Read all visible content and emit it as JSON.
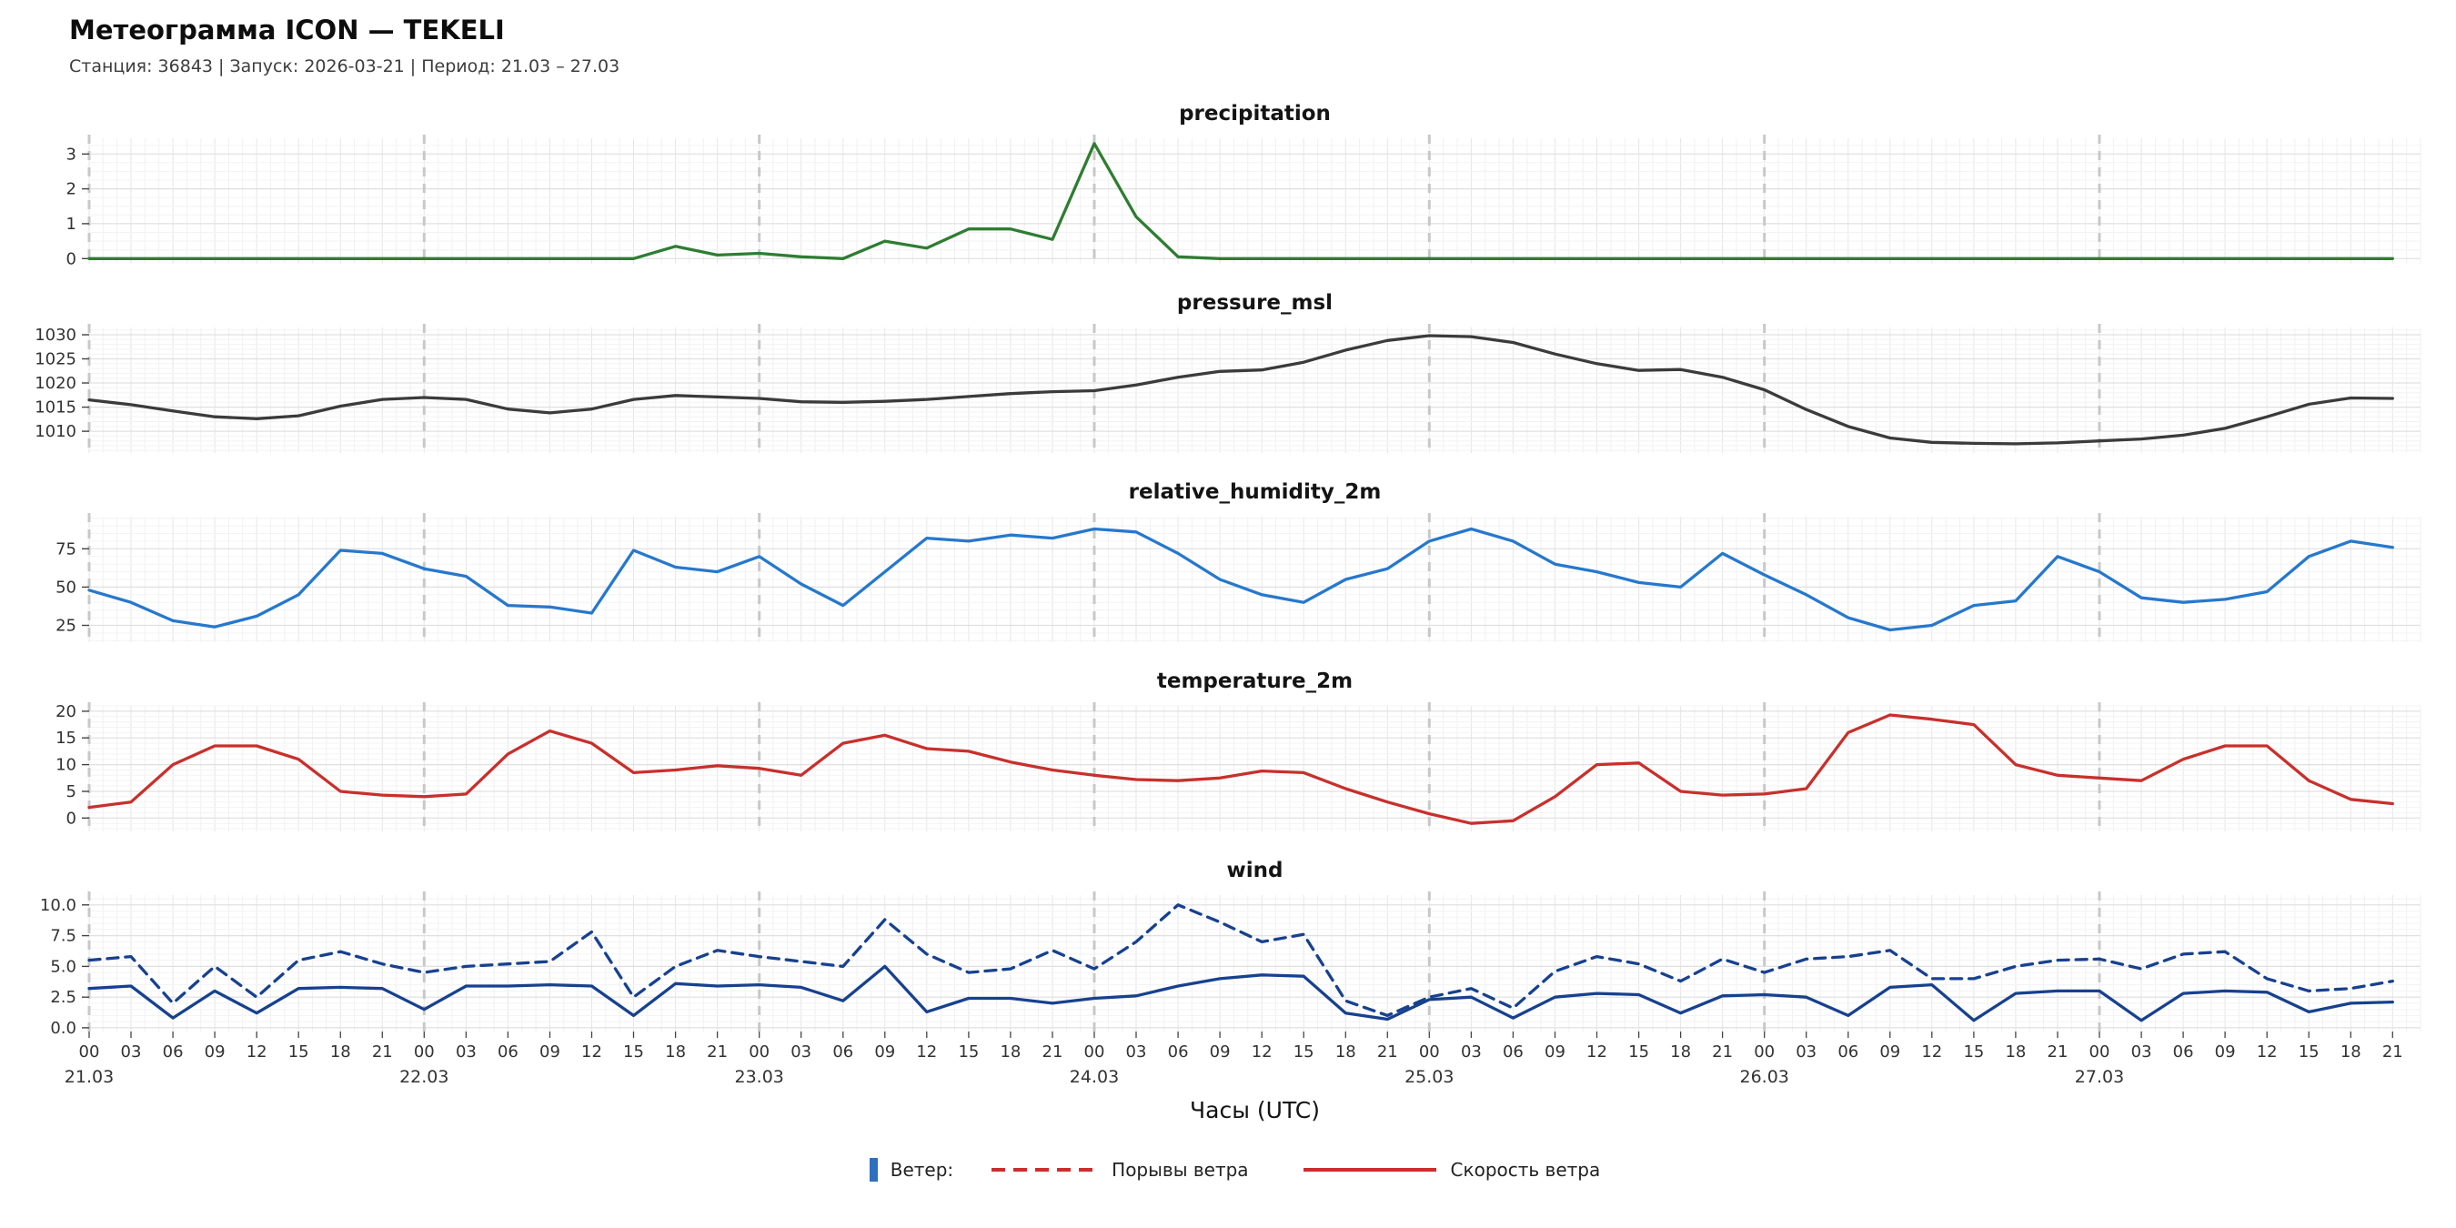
{
  "header": {
    "title": "Метеограмма ICON — TEKELI",
    "subtitle": "Станция: 36843  | Запуск: 2026-03-21  | Период: 21.03 – 27.03"
  },
  "x_axis": {
    "label": "Часы (UTC)",
    "hours_domain": [
      0,
      167
    ],
    "hour_tick_labels": [
      "00",
      "03",
      "06",
      "09",
      "12",
      "15",
      "18",
      "21"
    ],
    "day_labels": [
      "21.03",
      "22.03",
      "23.03",
      "24.03",
      "25.03",
      "26.03",
      "27.03"
    ],
    "sample_hours": [
      0,
      3,
      6,
      9,
      12,
      15,
      18,
      21,
      24,
      27,
      30,
      33,
      36,
      39,
      42,
      45,
      48,
      51,
      54,
      57,
      60,
      63,
      66,
      69,
      72,
      75,
      78,
      81,
      84,
      87,
      90,
      93,
      96,
      99,
      102,
      105,
      108,
      111,
      114,
      117,
      120,
      123,
      126,
      129,
      132,
      135,
      138,
      141,
      144,
      147,
      150,
      153,
      156,
      159,
      162,
      165
    ]
  },
  "chart_data": [
    {
      "type": "line",
      "title": "precipitation",
      "color": "#2e7d32",
      "ylim": [
        -0.15,
        3.45
      ],
      "ytick_values": [
        0,
        1,
        2,
        3
      ],
      "ytick_labels": [
        "0",
        "1",
        "2",
        "3"
      ],
      "y_minor_step": 0.25,
      "values": [
        0,
        0,
        0,
        0,
        0,
        0,
        0,
        0,
        0,
        0,
        0,
        0,
        0,
        0,
        0.35,
        0.1,
        0.15,
        0.05,
        0,
        0.5,
        0.3,
        0.85,
        0.85,
        0.55,
        3.3,
        1.2,
        0.05,
        0,
        0,
        0,
        0,
        0,
        0,
        0,
        0,
        0,
        0,
        0,
        0,
        0,
        0,
        0,
        0,
        0,
        0,
        0,
        0,
        0,
        0,
        0,
        0,
        0,
        0,
        0,
        0,
        0
      ]
    },
    {
      "type": "line",
      "title": "pressure_msl",
      "color": "#3b3b3b",
      "ylim": [
        1005.5,
        1031.5
      ],
      "ytick_values": [
        1010,
        1015,
        1020,
        1025,
        1030
      ],
      "ytick_labels": [
        "1010",
        "1015",
        "1020",
        "1025",
        "1030"
      ],
      "y_minor_step": 1,
      "values": [
        1016.5,
        1015.5,
        1014.2,
        1013,
        1012.6,
        1013.2,
        1015.2,
        1016.6,
        1017,
        1016.6,
        1014.6,
        1013.8,
        1014.6,
        1016.6,
        1017.4,
        1017.1,
        1016.8,
        1016.1,
        1016,
        1016.2,
        1016.6,
        1017.2,
        1017.8,
        1018.2,
        1018.4,
        1019.6,
        1021.2,
        1022.4,
        1022.7,
        1024.3,
        1026.8,
        1028.8,
        1029.8,
        1029.6,
        1028.4,
        1026,
        1024,
        1022.6,
        1022.8,
        1021.2,
        1018.6,
        1014.5,
        1011,
        1008.6,
        1007.7,
        1007.5,
        1007.4,
        1007.6,
        1008,
        1008.4,
        1009.2,
        1010.6,
        1013,
        1015.6,
        1016.9,
        1016.8
      ]
    },
    {
      "type": "line",
      "title": "relative_humidity_2m",
      "color": "#2678cd",
      "ylim": [
        14,
        96
      ],
      "ytick_values": [
        25,
        50,
        75
      ],
      "ytick_labels": [
        "25",
        "50",
        "75"
      ],
      "y_minor_step": 5,
      "values": [
        48,
        40,
        28,
        24,
        31,
        45,
        74,
        72,
        62,
        57,
        38,
        37,
        33,
        74,
        63,
        60,
        70,
        52,
        38,
        60,
        82,
        80,
        84,
        82,
        88,
        86,
        72,
        55,
        45,
        40,
        55,
        62,
        80,
        88,
        80,
        65,
        60,
        53,
        50,
        72,
        58,
        45,
        30,
        22,
        25,
        38,
        41,
        70,
        60,
        43,
        40,
        42,
        47,
        70,
        80,
        76
      ]
    },
    {
      "type": "line",
      "title": "temperature_2m",
      "color": "#c8302c",
      "ylim": [
        -2.5,
        21
      ],
      "ytick_values": [
        0,
        5,
        10,
        15,
        20
      ],
      "ytick_labels": [
        "0",
        "5",
        "10",
        "15",
        "20"
      ],
      "y_minor_step": 1,
      "values": [
        2,
        3,
        10,
        13.5,
        13.5,
        11,
        5,
        4.3,
        4,
        4.5,
        12,
        16.3,
        14,
        8.5,
        9,
        9.8,
        9.3,
        8,
        14,
        15.5,
        13,
        12.5,
        10.5,
        9,
        8,
        7.2,
        7,
        7.5,
        8.8,
        8.5,
        5.5,
        3,
        0.8,
        -1,
        -0.5,
        4,
        10,
        10.3,
        5,
        4.3,
        4.5,
        5.5,
        16,
        19.3,
        18.5,
        17.5,
        10,
        8,
        7.5,
        7,
        11,
        13.5,
        13.5,
        7,
        3.5,
        2.7
      ]
    },
    {
      "type": "line",
      "title": "wind",
      "ylim": [
        -0.3,
        10.8
      ],
      "ytick_values": [
        0,
        2.5,
        5,
        7.5,
        10
      ],
      "ytick_labels": [
        "0.0",
        "2.5",
        "5.0",
        "7.5",
        "10.0"
      ],
      "y_minor_step": 0.5,
      "series": [
        {
          "key": "wind-gusts",
          "name": "Порывы ветра",
          "style": "dashed",
          "color": "#17418f",
          "values": [
            5.5,
            5.8,
            2,
            5,
            2.5,
            5.5,
            6.2,
            5.2,
            4.5,
            5,
            5.2,
            5.4,
            7.8,
            2.5,
            5,
            6.3,
            5.8,
            5.4,
            5,
            8.8,
            6,
            4.5,
            4.8,
            6.3,
            4.8,
            7,
            10,
            8.6,
            7,
            7.6,
            2.2,
            1,
            2.5,
            3.2,
            1.6,
            4.6,
            5.8,
            5.2,
            3.8,
            5.6,
            4.5,
            5.6,
            5.8,
            6.3,
            4,
            4,
            5,
            5.5,
            5.6,
            4.8,
            6,
            6.2,
            4,
            3,
            3.2,
            3.8
          ]
        },
        {
          "key": "wind-speed",
          "name": "Скорость ветра",
          "style": "solid",
          "color": "#17418f",
          "values": [
            3.2,
            3.4,
            0.8,
            3,
            1.2,
            3.2,
            3.3,
            3.2,
            1.5,
            3.4,
            3.4,
            3.5,
            3.4,
            1,
            3.6,
            3.4,
            3.5,
            3.3,
            2.2,
            5,
            1.3,
            2.4,
            2.4,
            2,
            2.4,
            2.6,
            3.4,
            4,
            4.3,
            4.2,
            1.2,
            0.7,
            2.3,
            2.5,
            0.8,
            2.5,
            2.8,
            2.7,
            1.2,
            2.6,
            2.7,
            2.5,
            1,
            3.3,
            3.5,
            0.6,
            2.8,
            3,
            3,
            0.6,
            2.8,
            3,
            2.9,
            1.3,
            2,
            2.1
          ]
        }
      ]
    }
  ],
  "legend": {
    "title": "Ветер:",
    "accent_color": "#2e6fbf",
    "items": [
      {
        "label": "Порывы ветра",
        "style": "dashed",
        "color": "#cc2d2d"
      },
      {
        "label": "Скорость ветра",
        "style": "solid",
        "color": "#cc2d2d"
      }
    ]
  }
}
